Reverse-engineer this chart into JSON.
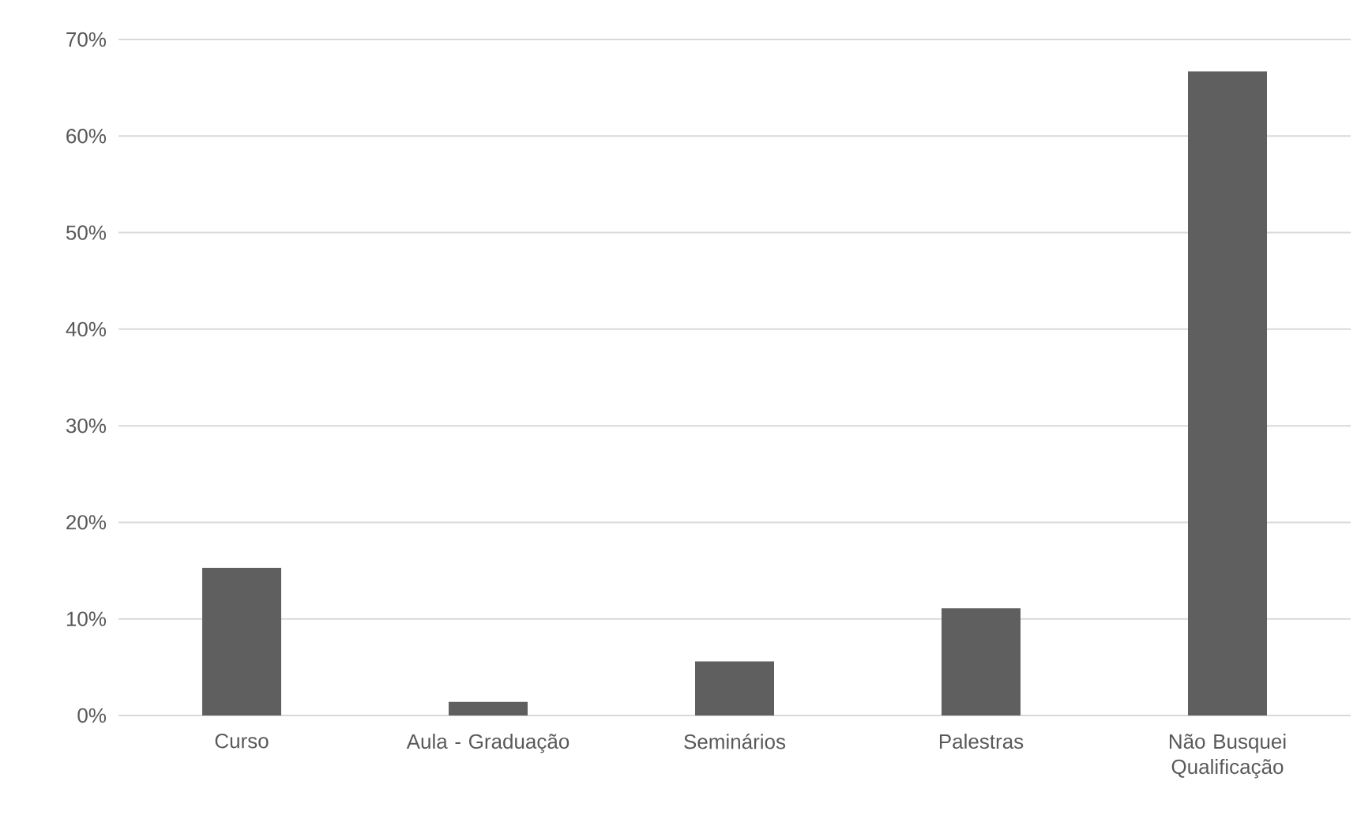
{
  "chart_data": {
    "type": "bar",
    "categories": [
      "Curso",
      "Aula - Graduação",
      "Seminários",
      "Palestras",
      "Não Busquei Qualificação"
    ],
    "values": [
      15.3,
      1.4,
      5.6,
      11.1,
      66.7
    ],
    "color": "#5f5f5f",
    "ylim": [
      0,
      70
    ],
    "yticks": [
      {
        "value": 0,
        "label": "0%"
      },
      {
        "value": 10,
        "label": "10%"
      },
      {
        "value": 20,
        "label": "20%"
      },
      {
        "value": 30,
        "label": "30%"
      },
      {
        "value": 40,
        "label": "40%"
      },
      {
        "value": 50,
        "label": "50%"
      },
      {
        "value": 60,
        "label": "60%"
      },
      {
        "value": 70,
        "label": "70%"
      }
    ],
    "grid": "y"
  }
}
